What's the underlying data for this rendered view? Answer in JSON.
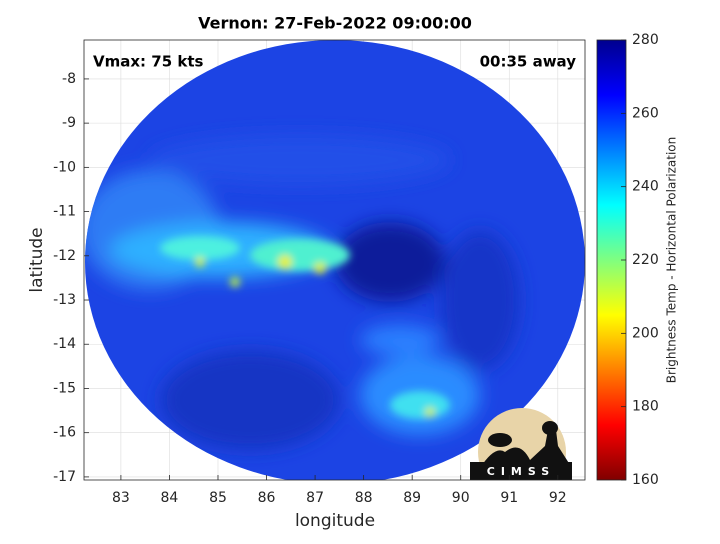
{
  "chart_data": {
    "type": "image",
    "title": "Vernon: 27-Feb-2022 09:00:00",
    "annotations": [
      "Vmax: 75 kts",
      "00:35 away"
    ],
    "xlabel": "longitude",
    "ylabel": "latitude",
    "xlim": [
      82.24,
      92.56
    ],
    "xticks": [
      83,
      84,
      85,
      86,
      87,
      88,
      89,
      90,
      91,
      92
    ],
    "ylim": [
      -17.07,
      -7.12
    ],
    "yticks": [
      -8,
      -9,
      -10,
      -11,
      -12,
      -13,
      -14,
      -15,
      -16,
      -17
    ],
    "grid": true,
    "colorbar": {
      "label": "Brightness Temp - Horizontal Polarization",
      "colormap": "jet",
      "lim": [
        160,
        280
      ],
      "ticks": [
        160,
        180,
        200,
        220,
        240,
        260,
        280
      ]
    },
    "logo_text": "CIMSS"
  }
}
